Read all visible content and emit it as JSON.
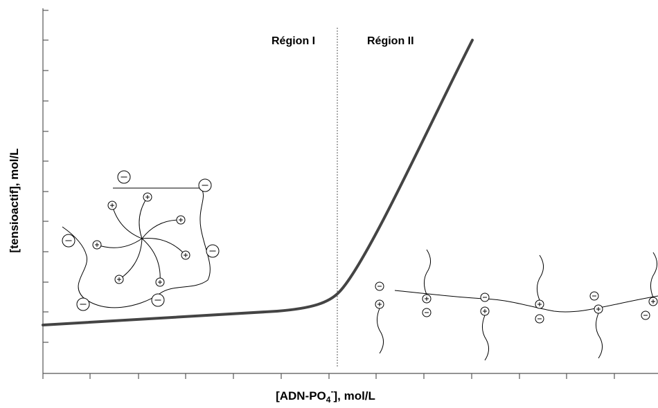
{
  "regions": [
    "Région I",
    "Région II"
  ],
  "x_axis_label": {
    "parts": [
      "[ADN-PO",
      "4",
      "-",
      "], mol/L"
    ]
  },
  "y_axis_label": "[tensioactif], mol/L"
}
